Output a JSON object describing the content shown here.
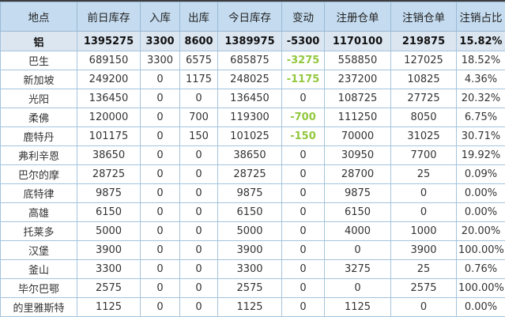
{
  "colors": {
    "header_bg": "#c5dcf0",
    "summary_row_bg": "#dce6f1",
    "grid_border": "#a3c4de",
    "negative_change_green": "#92c83e",
    "text": "#333333"
  },
  "table": {
    "headers": [
      "地点",
      "前日库存",
      "入库",
      "出库",
      "今日库存",
      "变动",
      "注册仓单",
      "注销仓单",
      "注销占比"
    ],
    "rows": [
      {
        "summary": true,
        "cells": [
          "铝",
          "1395275",
          "3300",
          "8600",
          "1389975",
          "-5300",
          "1170100",
          "219875",
          "15.82%"
        ]
      },
      {
        "summary": false,
        "cells": [
          "巴生",
          "689150",
          "3300",
          "6575",
          "685875",
          "-3275",
          "558850",
          "127025",
          "18.52%"
        ]
      },
      {
        "summary": false,
        "cells": [
          "新加坡",
          "249200",
          "0",
          "1175",
          "248025",
          "-1175",
          "237200",
          "10825",
          "4.36%"
        ]
      },
      {
        "summary": false,
        "cells": [
          "光阳",
          "136450",
          "0",
          "0",
          "136450",
          "0",
          "108725",
          "27725",
          "20.32%"
        ]
      },
      {
        "summary": false,
        "cells": [
          "柔佛",
          "120000",
          "0",
          "700",
          "119300",
          "-700",
          "111250",
          "8050",
          "6.75%"
        ]
      },
      {
        "summary": false,
        "cells": [
          "鹿特丹",
          "101175",
          "0",
          "150",
          "101025",
          "-150",
          "70000",
          "31025",
          "30.71%"
        ]
      },
      {
        "summary": false,
        "cells": [
          "弗利辛恩",
          "38650",
          "0",
          "0",
          "38650",
          "0",
          "30950",
          "7700",
          "19.92%"
        ]
      },
      {
        "summary": false,
        "cells": [
          "巴尔的摩",
          "28725",
          "0",
          "0",
          "28725",
          "0",
          "28700",
          "25",
          "0.09%"
        ]
      },
      {
        "summary": false,
        "cells": [
          "底特律",
          "9875",
          "0",
          "0",
          "9875",
          "0",
          "9875",
          "0",
          "0.00%"
        ]
      },
      {
        "summary": false,
        "cells": [
          "高雄",
          "6150",
          "0",
          "0",
          "6150",
          "0",
          "6150",
          "0",
          "0.00%"
        ]
      },
      {
        "summary": false,
        "cells": [
          "托莱多",
          "5000",
          "0",
          "0",
          "5000",
          "0",
          "4000",
          "1000",
          "20.00%"
        ]
      },
      {
        "summary": false,
        "cells": [
          "汉堡",
          "3900",
          "0",
          "0",
          "3900",
          "0",
          "0",
          "3900",
          "100.00%"
        ]
      },
      {
        "summary": false,
        "cells": [
          "釜山",
          "3300",
          "0",
          "0",
          "3300",
          "0",
          "3275",
          "25",
          "0.76%"
        ]
      },
      {
        "summary": false,
        "cells": [
          "毕尔巴鄂",
          "2575",
          "0",
          "0",
          "2575",
          "0",
          "0",
          "2575",
          "100.00%"
        ]
      },
      {
        "summary": false,
        "cells": [
          "的里雅斯特",
          "1125",
          "0",
          "0",
          "1125",
          "0",
          "1125",
          "0",
          "0.00%"
        ]
      }
    ]
  }
}
